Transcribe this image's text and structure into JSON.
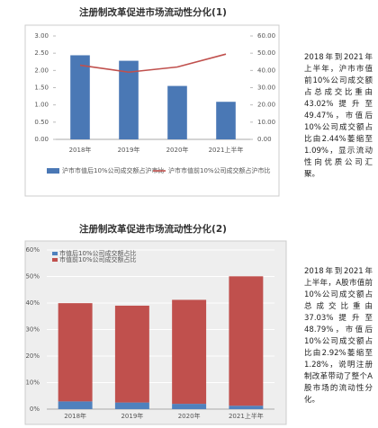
{
  "chart_data": [
    {
      "type": "bar-line",
      "title": "注册制改革促进市场流动性分化(1)",
      "categories": [
        "2018年",
        "2019年",
        "2020年",
        "2021上半年"
      ],
      "series": [
        {
          "name": "沪市市值后10%公司成交额占沪市比",
          "color": "#4a78b5",
          "values": [
            2.44,
            2.28,
            1.55,
            1.09
          ]
        },
        {
          "name": "沪市市值前10%公司成交额占沪市比",
          "color": "#c0504d",
          "axis": "y2",
          "values": [
            43.02,
            39,
            42,
            49.47
          ]
        }
      ],
      "ylim": [
        0,
        3
      ],
      "yticks": [
        {
          "value": 0,
          "label": "0.00"
        },
        {
          "value": 0.5,
          "label": "0.50"
        },
        {
          "value": 1,
          "label": "1.00"
        },
        {
          "value": 1.5,
          "label": "1.50"
        },
        {
          "value": 2,
          "label": "2.00"
        },
        {
          "value": 2.5,
          "label": "2.50"
        },
        {
          "value": 3,
          "label": "3.00"
        }
      ],
      "y2lim": [
        0,
        60
      ],
      "y2ticks": [
        {
          "value": 0,
          "label": "0.00"
        },
        {
          "value": 10,
          "label": "10.00"
        },
        {
          "value": 20,
          "label": "20.00"
        },
        {
          "value": 30,
          "label": "30.00"
        },
        {
          "value": 40,
          "label": "40.00"
        },
        {
          "value": 50,
          "label": "50.00"
        },
        {
          "value": 60,
          "label": "60.00"
        }
      ],
      "grid": false
    },
    {
      "type": "stacked-bar",
      "title": "注册制改革促进市场流动性分化(2)",
      "categories": [
        "2018年",
        "2019年",
        "2020年",
        "2021上半年"
      ],
      "series": [
        {
          "name": "市值后10%公司成交额占比",
          "color": "#4f81bd",
          "values": [
            2.92,
            2.5,
            2,
            1.28
          ]
        },
        {
          "name": "市值前10%公司成交额占比",
          "color": "#c0504d",
          "values": [
            37.03,
            36.5,
            39.2,
            48.79
          ]
        }
      ],
      "ylim": [
        0,
        60
      ],
      "yticks": [
        {
          "value": 0,
          "label": "0%"
        },
        {
          "value": 10,
          "label": "10%"
        },
        {
          "value": 20,
          "label": "20%"
        },
        {
          "value": 30,
          "label": "30%"
        },
        {
          "value": 40,
          "label": "40%"
        },
        {
          "value": 50,
          "label": "50%"
        },
        {
          "value": 60,
          "label": "60%"
        }
      ],
      "grid": true
    }
  ],
  "notes": [
    "2018年到2021年上半年，沪市市值前10%公司成交额占总成交比重由43.02%提升至49.47%，市值后10%公司成交额占比由2.44%萎缩至1.09%，显示流动性向优质公司汇聚。",
    "2018年到2021年上半年，A股市值前10%公司成交额占总成交比重由37.03%提升至48.79%，市值后10%公司成交额占比由2.92%萎缩至1.28%，说明注册制改革带动了整个A股市场的流动性分化。"
  ]
}
